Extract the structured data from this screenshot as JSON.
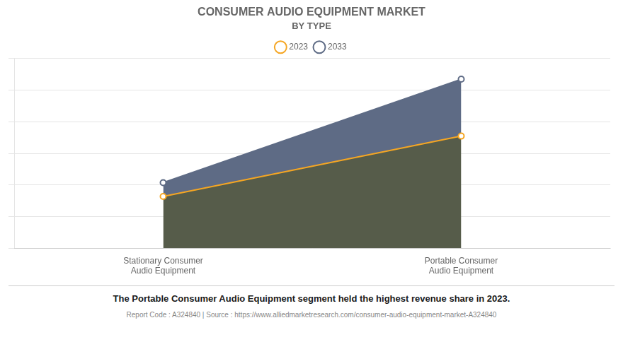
{
  "chart_data": {
    "type": "area",
    "title": "CONSUMER AUDIO EQUIPMENT MARKET",
    "subtitle": "BY TYPE",
    "categories": [
      "Stationary Consumer\nAudio Equipment",
      "Portable Consumer\nAudio Equipment"
    ],
    "series": [
      {
        "name": "2023",
        "color": "#f5a623",
        "marker": "circle",
        "values": [
          3.0,
          6.5
        ]
      },
      {
        "name": "2033",
        "color": "#5e6b85",
        "marker": "circle",
        "values": [
          3.8,
          9.8
        ]
      }
    ],
    "ylim": [
      0,
      11
    ],
    "yticks": [
      0,
      1.8333333333333333,
      3.6666666666666665,
      5.5,
      7.333333333333333,
      9.166666666666666,
      11
    ],
    "grid": true,
    "legend": "top",
    "tick_labels": "x",
    "note": "The Portable Consumer Audio Equipment segment held the highest revenue share in 2023.",
    "source": "Report Code : A324840  |  Source : https://www.alliedmarketresearch.com/consumer-audio-equipment-market-A324840"
  }
}
